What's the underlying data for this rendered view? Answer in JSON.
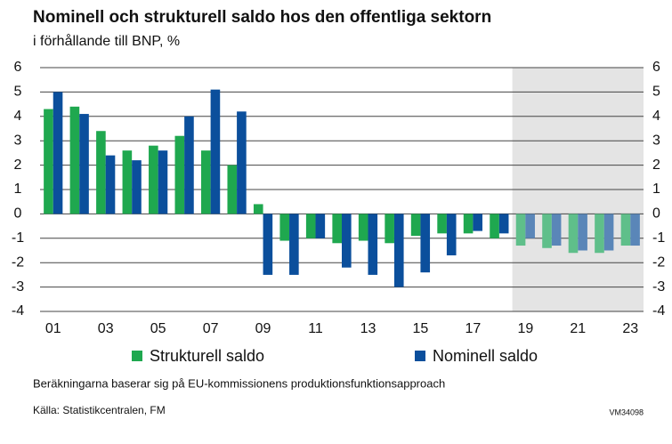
{
  "chart_data": {
    "type": "bar",
    "title": "Nominell och strukturell saldo hos den offentliga sektorn",
    "subtitle": "i förhållande till BNP, %",
    "categories": [
      "01",
      null,
      "03",
      null,
      "05",
      null,
      "07",
      null,
      "09",
      null,
      "11",
      null,
      "13",
      null,
      "15",
      null,
      "17",
      null,
      "19",
      null,
      "21",
      null,
      "23"
    ],
    "series": [
      {
        "name": "Strukturell saldo",
        "color": "#1fa84f",
        "forecast_color": "#5fbf8a",
        "values": [
          4.3,
          4.4,
          3.4,
          2.6,
          2.8,
          3.2,
          2.6,
          2.0,
          0.4,
          -1.1,
          -1.0,
          -1.2,
          -1.1,
          -1.2,
          -0.9,
          -0.8,
          -0.8,
          -1.0,
          -1.3,
          -1.4,
          -1.6,
          -1.6,
          -1.3
        ]
      },
      {
        "name": "Nominell saldo",
        "color": "#0b4f9c",
        "forecast_color": "#5a86b8",
        "values": [
          5.0,
          4.1,
          2.4,
          2.2,
          2.6,
          4.0,
          5.1,
          4.2,
          -2.5,
          -2.5,
          -1.0,
          -2.2,
          -2.5,
          -3.0,
          -2.4,
          -1.7,
          -0.7,
          -0.8,
          -1.0,
          -1.3,
          -1.5,
          -1.5,
          -1.3
        ]
      }
    ],
    "shade_from": "19",
    "ylim": [
      -4,
      6
    ],
    "yticks": [
      -4,
      -3,
      -2,
      -1,
      0,
      1,
      2,
      3,
      4,
      5,
      6
    ],
    "y2lim": [
      -4,
      6
    ],
    "y2ticks": [
      -4,
      -3,
      -2,
      -1,
      0,
      1,
      2,
      3,
      4,
      5,
      6
    ],
    "grid": true,
    "note": "Beräkningarna baserar sig på EU-kommissionens produktionsfunktionsapproach",
    "source": "Källa: Statistikcentralen, FM",
    "code": "VM34098"
  }
}
